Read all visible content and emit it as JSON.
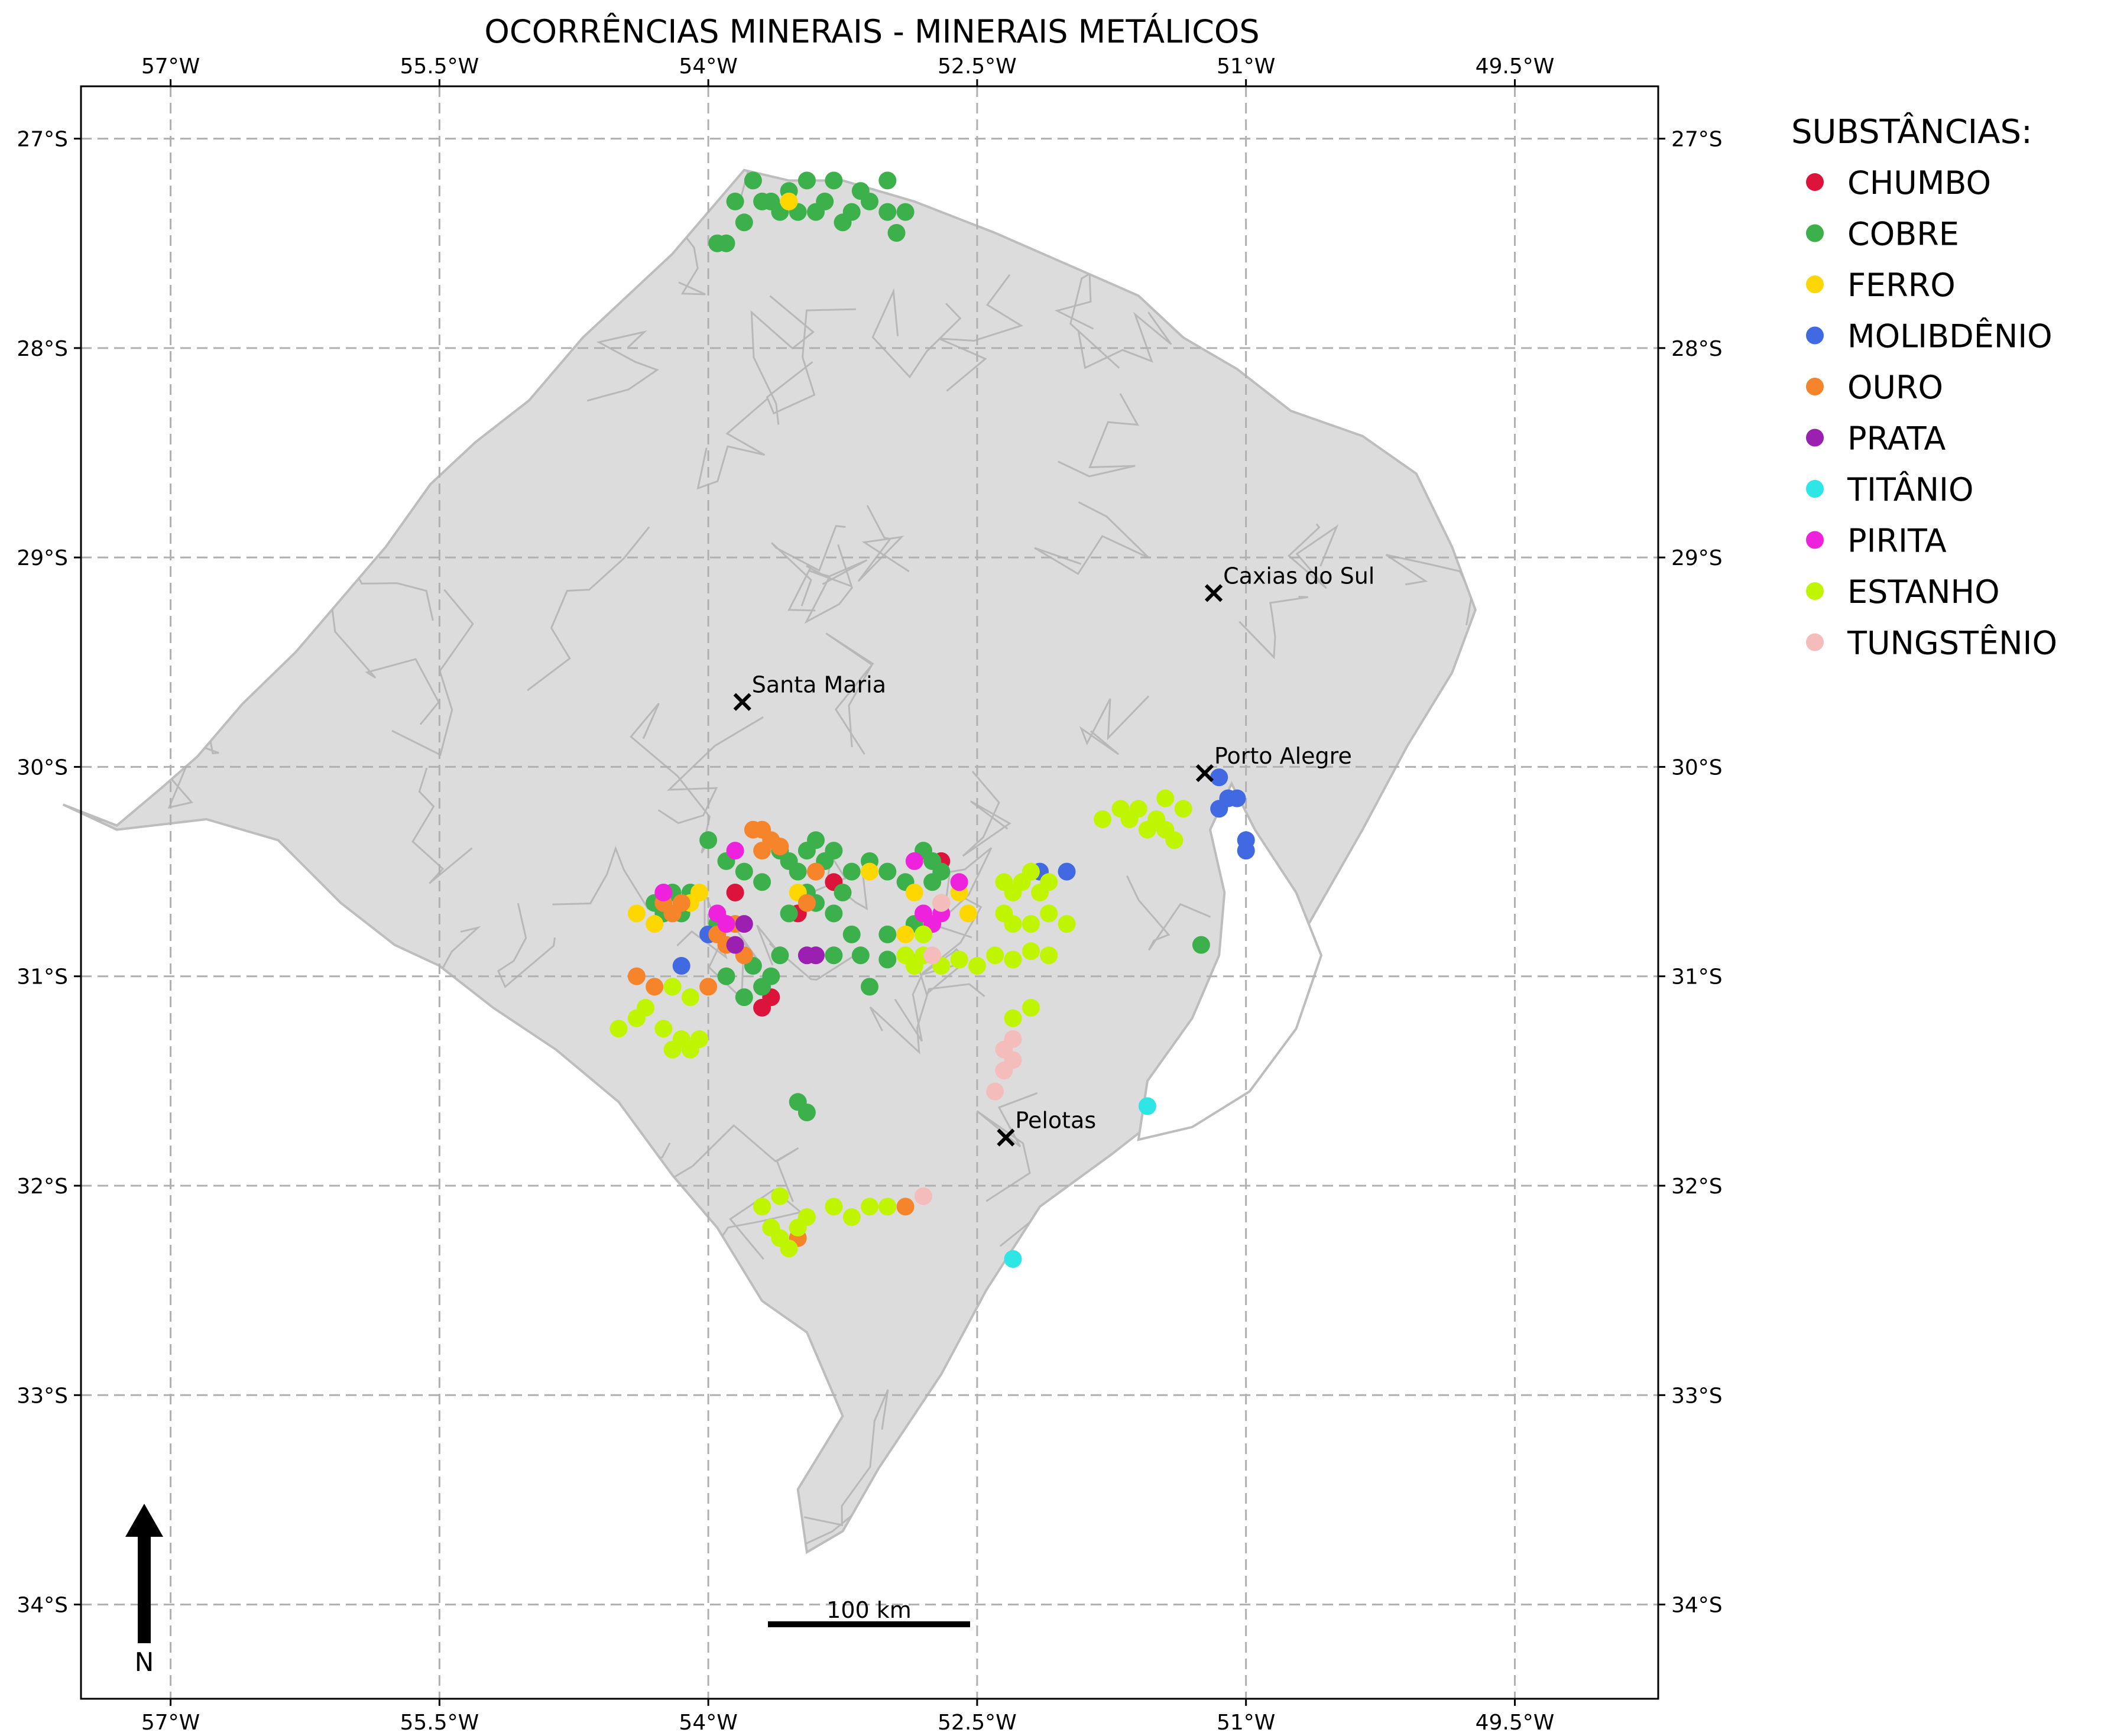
{
  "chart_data": {
    "type": "scatter",
    "title": "OCORRÊNCIAS MINERAIS - MINERAIS METÁLICOS",
    "xlim": [
      -57.5,
      -48.7
    ],
    "ylim": [
      -34.45,
      -26.75
    ],
    "x_ticks": [
      {
        "value": -57.0,
        "label": "57°W"
      },
      {
        "value": -55.5,
        "label": "55.5°W"
      },
      {
        "value": -54.0,
        "label": "54°W"
      },
      {
        "value": -52.5,
        "label": "52.5°W"
      },
      {
        "value": -51.0,
        "label": "51°W"
      },
      {
        "value": -49.5,
        "label": "49.5°W"
      }
    ],
    "y_ticks": [
      {
        "value": -27,
        "label": "27°S"
      },
      {
        "value": -28,
        "label": "28°S"
      },
      {
        "value": -29,
        "label": "29°S"
      },
      {
        "value": -30,
        "label": "30°S"
      },
      {
        "value": -31,
        "label": "31°S"
      },
      {
        "value": -32,
        "label": "32°S"
      },
      {
        "value": -33,
        "label": "33°S"
      },
      {
        "value": -34,
        "label": "34°S"
      }
    ],
    "grid": true,
    "legend": {
      "title": "SUBSTÂNCIAS:",
      "placement": "right-outside"
    },
    "state_outline": [
      [
        -57.6,
        -30.18
      ],
      [
        -57.3,
        -30.28
      ],
      [
        -57.05,
        -30.1
      ],
      [
        -56.85,
        -29.95
      ],
      [
        -56.6,
        -29.7
      ],
      [
        -56.3,
        -29.45
      ],
      [
        -56.05,
        -29.2
      ],
      [
        -55.8,
        -28.95
      ],
      [
        -55.55,
        -28.65
      ],
      [
        -55.3,
        -28.45
      ],
      [
        -55.0,
        -28.25
      ],
      [
        -54.7,
        -27.95
      ],
      [
        -54.45,
        -27.75
      ],
      [
        -54.2,
        -27.55
      ],
      [
        -53.95,
        -27.3
      ],
      [
        -53.8,
        -27.15
      ],
      [
        -53.55,
        -27.2
      ],
      [
        -53.25,
        -27.2
      ],
      [
        -52.85,
        -27.3
      ],
      [
        -52.4,
        -27.45
      ],
      [
        -52.0,
        -27.6
      ],
      [
        -51.6,
        -27.75
      ],
      [
        -51.35,
        -27.95
      ],
      [
        -51.05,
        -28.1
      ],
      [
        -50.75,
        -28.3
      ],
      [
        -50.35,
        -28.42
      ],
      [
        -50.05,
        -28.6
      ],
      [
        -49.85,
        -28.95
      ],
      [
        -49.72,
        -29.25
      ],
      [
        -49.85,
        -29.55
      ],
      [
        -50.1,
        -29.9
      ],
      [
        -50.35,
        -30.3
      ],
      [
        -50.65,
        -30.75
      ],
      [
        -50.95,
        -31.2
      ],
      [
        -51.3,
        -31.55
      ],
      [
        -51.75,
        -31.85
      ],
      [
        -52.15,
        -32.1
      ],
      [
        -52.45,
        -32.5
      ],
      [
        -52.7,
        -32.9
      ],
      [
        -53.05,
        -33.35
      ],
      [
        -53.25,
        -33.65
      ],
      [
        -53.45,
        -33.75
      ],
      [
        -53.5,
        -33.45
      ],
      [
        -53.25,
        -33.1
      ],
      [
        -53.45,
        -32.7
      ],
      [
        -53.7,
        -32.55
      ],
      [
        -53.95,
        -32.2
      ],
      [
        -54.2,
        -31.95
      ],
      [
        -54.5,
        -31.6
      ],
      [
        -54.85,
        -31.35
      ],
      [
        -55.2,
        -31.15
      ],
      [
        -55.5,
        -30.95
      ],
      [
        -55.75,
        -30.85
      ],
      [
        -56.05,
        -30.65
      ],
      [
        -56.4,
        -30.35
      ],
      [
        -56.8,
        -30.25
      ],
      [
        -57.3,
        -30.3
      ],
      [
        -57.6,
        -30.18
      ]
    ],
    "lagoon_outline": [
      [
        -51.08,
        -30.08
      ],
      [
        -50.95,
        -30.3
      ],
      [
        -50.72,
        -30.6
      ],
      [
        -50.58,
        -30.9
      ],
      [
        -50.72,
        -31.25
      ],
      [
        -50.98,
        -31.55
      ],
      [
        -51.3,
        -31.72
      ],
      [
        -51.6,
        -31.78
      ],
      [
        -51.55,
        -31.5
      ],
      [
        -51.3,
        -31.2
      ],
      [
        -51.15,
        -30.9
      ],
      [
        -51.12,
        -30.6
      ],
      [
        -51.2,
        -30.3
      ],
      [
        -51.08,
        -30.08
      ]
    ],
    "cities": [
      {
        "name": "Santa Maria",
        "x": -53.81,
        "y": -29.69
      },
      {
        "name": "Caxias do Sul",
        "x": -51.18,
        "y": -29.17
      },
      {
        "name": "Porto Alegre",
        "x": -51.23,
        "y": -30.03
      },
      {
        "name": "Pelotas",
        "x": -52.34,
        "y": -31.77
      }
    ],
    "series": [
      {
        "name": "CHUMBO",
        "color": "#dc143c",
        "points": [
          [
            -53.7,
            -31.15
          ],
          [
            -53.65,
            -31.1
          ],
          [
            -53.85,
            -30.6
          ],
          [
            -52.7,
            -30.45
          ],
          [
            -53.5,
            -30.7
          ],
          [
            -53.3,
            -30.55
          ]
        ]
      },
      {
        "name": "COBRE",
        "color": "#3cb04a",
        "points": [
          [
            -53.75,
            -27.2
          ],
          [
            -53.7,
            -27.3
          ],
          [
            -53.55,
            -27.25
          ],
          [
            -53.5,
            -27.35
          ],
          [
            -53.45,
            -27.2
          ],
          [
            -53.35,
            -27.3
          ],
          [
            -53.3,
            -27.2
          ],
          [
            -53.2,
            -27.35
          ],
          [
            -53.15,
            -27.25
          ],
          [
            -53.1,
            -27.3
          ],
          [
            -53.0,
            -27.2
          ],
          [
            -53.0,
            -27.35
          ],
          [
            -52.95,
            -27.45
          ],
          [
            -53.4,
            -27.35
          ],
          [
            -53.6,
            -27.35
          ],
          [
            -53.85,
            -27.3
          ],
          [
            -53.9,
            -27.5
          ],
          [
            -53.95,
            -27.5
          ],
          [
            -53.8,
            -27.4
          ],
          [
            -53.65,
            -27.3
          ],
          [
            -53.25,
            -27.4
          ],
          [
            -52.9,
            -27.35
          ],
          [
            -54.2,
            -30.6
          ],
          [
            -54.3,
            -30.65
          ],
          [
            -54.25,
            -30.7
          ],
          [
            -54.1,
            -30.6
          ],
          [
            -54.15,
            -30.7
          ],
          [
            -53.95,
            -30.75
          ],
          [
            -53.8,
            -30.5
          ],
          [
            -53.7,
            -30.55
          ],
          [
            -53.6,
            -30.4
          ],
          [
            -53.5,
            -30.5
          ],
          [
            -53.45,
            -30.4
          ],
          [
            -53.4,
            -30.35
          ],
          [
            -53.35,
            -30.45
          ],
          [
            -53.3,
            -30.4
          ],
          [
            -53.2,
            -30.5
          ],
          [
            -53.1,
            -30.45
          ],
          [
            -53.0,
            -30.5
          ],
          [
            -52.9,
            -30.55
          ],
          [
            -52.8,
            -30.4
          ],
          [
            -52.75,
            -30.45
          ],
          [
            -52.7,
            -30.5
          ],
          [
            -52.85,
            -30.75
          ],
          [
            -53.0,
            -30.8
          ],
          [
            -53.15,
            -30.9
          ],
          [
            -53.3,
            -30.7
          ],
          [
            -53.4,
            -30.65
          ],
          [
            -53.55,
            -30.7
          ],
          [
            -53.6,
            -30.9
          ],
          [
            -53.65,
            -31.0
          ],
          [
            -53.7,
            -31.05
          ],
          [
            -53.75,
            -30.95
          ],
          [
            -53.8,
            -31.1
          ],
          [
            -53.9,
            -31.0
          ],
          [
            -54.0,
            -30.35
          ],
          [
            -53.9,
            -30.45
          ],
          [
            -53.45,
            -30.6
          ],
          [
            -53.25,
            -30.6
          ],
          [
            -53.1,
            -31.05
          ],
          [
            -53.0,
            -30.92
          ],
          [
            -52.7,
            -30.65
          ],
          [
            -52.75,
            -30.55
          ],
          [
            -51.25,
            -30.85
          ],
          [
            -53.5,
            -31.6
          ],
          [
            -53.45,
            -31.65
          ],
          [
            -53.55,
            -30.45
          ],
          [
            -53.3,
            -30.9
          ],
          [
            -53.2,
            -30.8
          ]
        ]
      },
      {
        "name": "FERRO",
        "color": "#ffd700",
        "points": [
          [
            -53.55,
            -27.3
          ],
          [
            -54.4,
            -30.7
          ],
          [
            -54.3,
            -30.75
          ],
          [
            -54.1,
            -30.65
          ],
          [
            -54.05,
            -30.6
          ],
          [
            -53.5,
            -30.6
          ],
          [
            -53.1,
            -30.5
          ],
          [
            -52.85,
            -30.6
          ],
          [
            -52.9,
            -30.8
          ],
          [
            -52.7,
            -30.65
          ],
          [
            -52.6,
            -30.6
          ],
          [
            -52.55,
            -30.7
          ]
        ]
      },
      {
        "name": "MOLIBDÊNIO",
        "color": "#4169e1",
        "points": [
          [
            -51.15,
            -30.05
          ],
          [
            -51.15,
            -30.2
          ],
          [
            -51.1,
            -30.15
          ],
          [
            -51.05,
            -30.15
          ],
          [
            -51.0,
            -30.35
          ],
          [
            -51.0,
            -30.4
          ],
          [
            -52.0,
            -30.5
          ],
          [
            -54.0,
            -30.8
          ],
          [
            -54.15,
            -30.95
          ],
          [
            -52.15,
            -30.5
          ]
        ]
      },
      {
        "name": "OURO",
        "color": "#f5842a",
        "points": [
          [
            -53.7,
            -30.3
          ],
          [
            -53.7,
            -30.4
          ],
          [
            -53.65,
            -30.35
          ],
          [
            -53.6,
            -30.38
          ],
          [
            -53.75,
            -30.3
          ],
          [
            -54.15,
            -30.65
          ],
          [
            -54.2,
            -30.7
          ],
          [
            -54.25,
            -30.65
          ],
          [
            -53.95,
            -30.8
          ],
          [
            -53.9,
            -30.85
          ],
          [
            -53.85,
            -30.75
          ],
          [
            -53.8,
            -30.9
          ],
          [
            -53.4,
            -30.5
          ],
          [
            -53.45,
            -30.65
          ],
          [
            -54.4,
            -31.0
          ],
          [
            -54.3,
            -31.05
          ],
          [
            -54.0,
            -31.05
          ],
          [
            -53.5,
            -32.25
          ],
          [
            -52.9,
            -32.1
          ]
        ]
      },
      {
        "name": "PRATA",
        "color": "#9b1fb0",
        "points": [
          [
            -53.85,
            -30.85
          ],
          [
            -53.8,
            -30.75
          ],
          [
            -53.45,
            -30.9
          ],
          [
            -53.4,
            -30.9
          ]
        ]
      },
      {
        "name": "TITÂNIO",
        "color": "#2ee6e6",
        "points": [
          [
            -51.55,
            -31.62
          ],
          [
            -52.3,
            -32.35
          ]
        ]
      },
      {
        "name": "PIRITA",
        "color": "#ee22dd",
        "points": [
          [
            -53.85,
            -30.4
          ],
          [
            -54.25,
            -30.6
          ],
          [
            -53.95,
            -30.7
          ],
          [
            -53.9,
            -30.75
          ],
          [
            -52.85,
            -30.45
          ],
          [
            -52.8,
            -30.7
          ],
          [
            -52.75,
            -30.75
          ],
          [
            -52.7,
            -30.7
          ],
          [
            -52.6,
            -30.55
          ]
        ]
      },
      {
        "name": "ESTANHO",
        "color": "#c0f500",
        "points": [
          [
            -51.7,
            -30.2
          ],
          [
            -51.65,
            -30.25
          ],
          [
            -51.6,
            -30.2
          ],
          [
            -51.55,
            -30.3
          ],
          [
            -51.5,
            -30.25
          ],
          [
            -51.45,
            -30.15
          ],
          [
            -51.45,
            -30.3
          ],
          [
            -51.4,
            -30.35
          ],
          [
            -51.8,
            -30.25
          ],
          [
            -51.35,
            -30.2
          ],
          [
            -52.35,
            -30.55
          ],
          [
            -52.3,
            -30.6
          ],
          [
            -52.25,
            -30.55
          ],
          [
            -52.2,
            -30.5
          ],
          [
            -52.15,
            -30.6
          ],
          [
            -52.1,
            -30.55
          ],
          [
            -52.35,
            -30.7
          ],
          [
            -52.3,
            -30.75
          ],
          [
            -52.2,
            -30.75
          ],
          [
            -52.1,
            -30.7
          ],
          [
            -52.0,
            -30.75
          ],
          [
            -52.4,
            -30.9
          ],
          [
            -52.3,
            -30.92
          ],
          [
            -52.2,
            -30.88
          ],
          [
            -52.1,
            -30.9
          ],
          [
            -52.5,
            -30.95
          ],
          [
            -52.6,
            -30.92
          ],
          [
            -52.7,
            -30.95
          ],
          [
            -52.8,
            -30.9
          ],
          [
            -52.85,
            -30.95
          ],
          [
            -52.9,
            -30.9
          ],
          [
            -52.8,
            -30.8
          ],
          [
            -52.3,
            -31.2
          ],
          [
            -52.2,
            -31.15
          ],
          [
            -54.5,
            -31.25
          ],
          [
            -54.4,
            -31.2
          ],
          [
            -54.35,
            -31.15
          ],
          [
            -54.25,
            -31.25
          ],
          [
            -54.2,
            -31.35
          ],
          [
            -54.15,
            -31.3
          ],
          [
            -54.1,
            -31.35
          ],
          [
            -54.05,
            -31.3
          ],
          [
            -54.1,
            -31.1
          ],
          [
            -54.2,
            -31.05
          ],
          [
            -53.7,
            -32.1
          ],
          [
            -53.65,
            -32.2
          ],
          [
            -53.6,
            -32.25
          ],
          [
            -53.55,
            -32.3
          ],
          [
            -53.45,
            -32.15
          ],
          [
            -53.3,
            -32.1
          ],
          [
            -53.2,
            -32.15
          ],
          [
            -53.1,
            -32.1
          ],
          [
            -53.0,
            -32.1
          ],
          [
            -53.6,
            -32.05
          ],
          [
            -53.5,
            -32.2
          ]
        ]
      },
      {
        "name": "TUNGSTÊNIO",
        "color": "#f5bcbc",
        "points": [
          [
            -52.35,
            -31.35
          ],
          [
            -52.3,
            -31.3
          ],
          [
            -52.35,
            -31.45
          ],
          [
            -52.4,
            -31.55
          ],
          [
            -52.3,
            -31.4
          ],
          [
            -52.7,
            -30.65
          ],
          [
            -52.75,
            -30.9
          ],
          [
            -52.8,
            -32.05
          ]
        ]
      }
    ],
    "scale_bar": {
      "label": "100 km"
    },
    "north_arrow": {
      "label": "N"
    }
  }
}
